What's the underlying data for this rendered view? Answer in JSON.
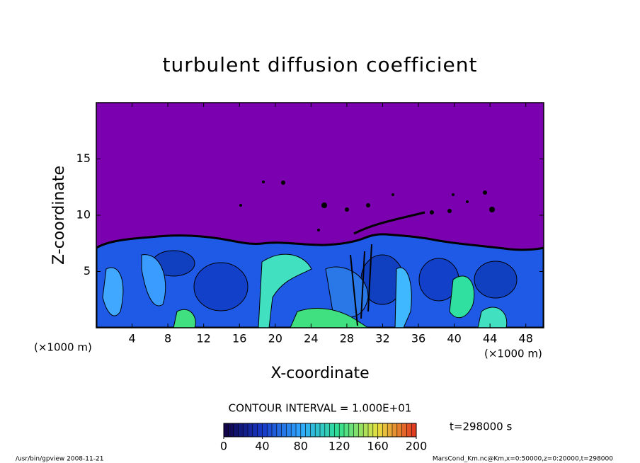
{
  "chart_data": {
    "type": "contour",
    "title": "turbulent diffusion coefficient",
    "xlabel": "X-coordinate",
    "ylabel": "Z-coordinate",
    "x_unit": "(×1000 m)",
    "xlim": [
      0,
      50
    ],
    "xticks": [
      4,
      8,
      12,
      16,
      20,
      24,
      28,
      32,
      36,
      40,
      44,
      48
    ],
    "ylim": [
      0,
      20
    ],
    "yticks": [
      5,
      10,
      15
    ],
    "background_color": "#7a00b0",
    "contour_interval": "CONTOUR INTERVAL = 1.000E+01",
    "time_label": "t=298000 s",
    "clim": [
      0,
      200
    ],
    "colorbar_ticks": [
      0,
      40,
      80,
      120,
      160,
      200
    ],
    "colormap": [
      "#100040",
      "#1838c8",
      "#30a8ff",
      "#30e090",
      "#e8e040",
      "#e03020"
    ],
    "footer_left": "/usr/bin/gpview  2008-11-21",
    "footer_right": "MarsCond_Km.nc@Km,x=0:50000,z=0:20000,t=298000"
  }
}
